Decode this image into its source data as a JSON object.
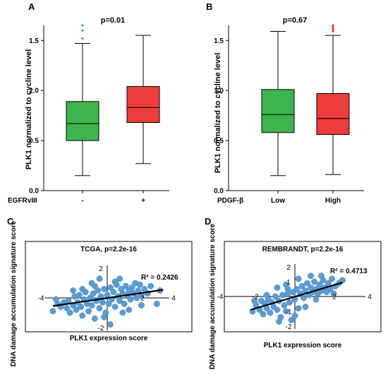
{
  "chart_data": [
    {
      "panel": "A",
      "type": "box",
      "title": "p=0.01",
      "ylabel": "PLK1 normalized  to cycline level",
      "group_label": "EGFRvIII",
      "ylim": [
        0,
        1.65
      ],
      "yticks": [
        "0.0",
        "0.5",
        "1.0",
        "1.5"
      ],
      "categories": [
        "-",
        "+"
      ],
      "boxes": [
        {
          "category": "-",
          "min": 0.15,
          "q1": 0.5,
          "median": 0.67,
          "q3": 0.89,
          "max": 1.47,
          "outliers": [
            1.52,
            1.6,
            1.65
          ],
          "color": "#3cb44b"
        },
        {
          "category": "+",
          "min": 0.27,
          "q1": 0.68,
          "median": 0.83,
          "q3": 1.04,
          "max": 1.55,
          "outliers": [],
          "color": "#ee3b3b"
        }
      ]
    },
    {
      "panel": "B",
      "type": "box",
      "title": "p=0.67",
      "ylabel": "PLK1 normalized  to cycline level",
      "group_label": "PDGF-β",
      "ylim": [
        0,
        1.65
      ],
      "yticks": [
        "0.0",
        "0.5",
        "1.0",
        "1.5"
      ],
      "categories": [
        "Low",
        "High"
      ],
      "boxes": [
        {
          "category": "Low",
          "min": 0.15,
          "q1": 0.58,
          "median": 0.76,
          "q3": 1.01,
          "max": 1.59,
          "outliers": [],
          "color": "#3cb44b"
        },
        {
          "category": "High",
          "min": 0.16,
          "q1": 0.56,
          "median": 0.72,
          "q3": 0.97,
          "max": 1.55,
          "outliers": [
            1.59,
            1.61,
            1.63,
            1.65
          ],
          "color": "#ee3b3b"
        }
      ]
    },
    {
      "panel": "C",
      "type": "scatter",
      "title": "TCGA, p=2.2e-16",
      "xlabel": "PLK1 expression score",
      "ylabel": "DNA damage accumulation signature score",
      "annotation": "R² = 0.2426",
      "xlim": [
        -4,
        4
      ],
      "ylim": [
        -2.2,
        2.2
      ],
      "xticks": [
        "-4",
        "2",
        "4"
      ],
      "yticks": [
        "2",
        "-2"
      ],
      "color": "#5b9bd5",
      "trend": {
        "x": [
          -3.5,
          3.6
        ],
        "y": [
          -0.55,
          0.55
        ]
      },
      "points": [
        [
          -3.5,
          -0.9
        ],
        [
          -3.2,
          -0.4
        ],
        [
          -3.0,
          -0.6
        ],
        [
          -2.8,
          -0.3
        ],
        [
          -2.6,
          -0.7
        ],
        [
          -2.5,
          -0.2
        ],
        [
          -2.4,
          -1.0
        ],
        [
          -2.2,
          -0.5
        ],
        [
          -2.1,
          0.1
        ],
        [
          -2.0,
          -0.8
        ],
        [
          -1.9,
          -0.3
        ],
        [
          -1.8,
          0.2
        ],
        [
          -1.7,
          -0.6
        ],
        [
          -1.6,
          -1.2
        ],
        [
          -1.5,
          -0.1
        ],
        [
          -1.4,
          0.4
        ],
        [
          -1.3,
          -0.4
        ],
        [
          -1.2,
          -0.9
        ],
        [
          -1.1,
          0.0
        ],
        [
          -1.0,
          -0.5
        ],
        [
          -0.9,
          0.3
        ],
        [
          -0.8,
          -1.4
        ],
        [
          -0.7,
          -0.2
        ],
        [
          -0.6,
          0.5
        ],
        [
          -0.5,
          -0.7
        ],
        [
          -0.4,
          0.1
        ],
        [
          -0.3,
          -0.3
        ],
        [
          -0.2,
          0.6
        ],
        [
          -0.1,
          -1.0
        ],
        [
          0.0,
          0.2
        ],
        [
          0.1,
          -0.4
        ],
        [
          0.2,
          0.7
        ],
        [
          0.3,
          -0.1
        ],
        [
          0.4,
          0.4
        ],
        [
          0.5,
          -0.6
        ],
        [
          0.6,
          0.9
        ],
        [
          0.7,
          0.1
        ],
        [
          0.8,
          -0.2
        ],
        [
          0.9,
          0.6
        ],
        [
          1.0,
          0.3
        ],
        [
          1.1,
          -0.4
        ],
        [
          1.2,
          0.8
        ],
        [
          1.3,
          0.2
        ],
        [
          1.4,
          0.5
        ],
        [
          1.5,
          -0.1
        ],
        [
          1.6,
          0.7
        ],
        [
          1.7,
          0.3
        ],
        [
          1.8,
          1.0
        ],
        [
          1.9,
          0.0
        ],
        [
          2.0,
          0.5
        ],
        [
          2.1,
          0.9
        ],
        [
          2.2,
          0.2
        ],
        [
          2.4,
          0.6
        ],
        [
          2.6,
          0.3
        ],
        [
          2.8,
          0.8
        ],
        [
          3.2,
          -0.4
        ],
        [
          3.4,
          0.5
        ],
        [
          -0.5,
          1.3
        ],
        [
          0.2,
          -1.8
        ],
        [
          -1.0,
          1.0
        ],
        [
          0.8,
          1.3
        ],
        [
          -2.2,
          0.5
        ],
        [
          1.4,
          -0.8
        ],
        [
          -0.2,
          -1.3
        ],
        [
          0.5,
          1.1
        ],
        [
          -1.6,
          0.6
        ],
        [
          1.0,
          -1.0
        ],
        [
          -0.8,
          0.8
        ],
        [
          2.2,
          -0.5
        ],
        [
          -3.3,
          -0.1
        ]
      ]
    },
    {
      "panel": "D",
      "type": "scatter",
      "title": "REMBRANDT, p=2.2e-16",
      "xlabel": "PLK1 expression score",
      "ylabel": "DNA damage accumulation signature score",
      "annotation": "R² = 0.4713",
      "xlim": [
        -4,
        4
      ],
      "ylim": [
        -2.2,
        2.2
      ],
      "xticks": [
        "-4",
        "-2",
        "2",
        "4"
      ],
      "yticks": [
        "2",
        "1",
        "-1",
        "-2"
      ],
      "color": "#5b9bd5",
      "trend": {
        "x": [
          -2.5,
          2.7
        ],
        "y": [
          -0.9,
          0.95
        ]
      },
      "points": [
        [
          -2.4,
          -1.0
        ],
        [
          -2.2,
          -0.6
        ],
        [
          -2.0,
          -0.9
        ],
        [
          -1.9,
          -0.3
        ],
        [
          -1.8,
          -1.2
        ],
        [
          -1.7,
          -0.5
        ],
        [
          -1.6,
          -0.8
        ],
        [
          -1.5,
          -0.2
        ],
        [
          -1.4,
          -1.1
        ],
        [
          -1.3,
          -0.4
        ],
        [
          -1.2,
          -0.7
        ],
        [
          -1.1,
          0.0
        ],
        [
          -1.0,
          -0.9
        ],
        [
          -0.9,
          -0.3
        ],
        [
          -0.8,
          -1.4
        ],
        [
          -0.7,
          0.1
        ],
        [
          -0.6,
          -0.6
        ],
        [
          -0.5,
          -1.0
        ],
        [
          -0.4,
          0.2
        ],
        [
          -0.3,
          -0.4
        ],
        [
          -0.2,
          -1.6
        ],
        [
          -0.1,
          0.3
        ],
        [
          0.0,
          -0.2
        ],
        [
          0.1,
          0.5
        ],
        [
          0.2,
          -0.8
        ],
        [
          0.3,
          0.2
        ],
        [
          0.4,
          0.7
        ],
        [
          0.5,
          -0.1
        ],
        [
          0.6,
          0.4
        ],
        [
          0.7,
          0.9
        ],
        [
          0.8,
          0.1
        ],
        [
          0.9,
          0.6
        ],
        [
          1.0,
          0.3
        ],
        [
          1.1,
          1.0
        ],
        [
          1.2,
          0.5
        ],
        [
          1.3,
          0.2
        ],
        [
          1.4,
          0.8
        ],
        [
          1.5,
          0.4
        ],
        [
          1.6,
          1.1
        ],
        [
          1.7,
          0.6
        ],
        [
          1.8,
          0.3
        ],
        [
          1.9,
          0.9
        ],
        [
          2.0,
          0.5
        ],
        [
          2.1,
          1.2
        ],
        [
          2.3,
          0.7
        ],
        [
          2.5,
          0.9
        ],
        [
          2.7,
          1.1
        ],
        [
          -1.0,
          0.6
        ],
        [
          -0.5,
          0.8
        ],
        [
          0.2,
          1.2
        ],
        [
          0.6,
          -0.7
        ],
        [
          -2.3,
          -0.3
        ],
        [
          1.2,
          -0.2
        ],
        [
          -0.9,
          -1.7
        ],
        [
          0.9,
          1.4
        ],
        [
          -1.6,
          0.1
        ],
        [
          0.0,
          -1.3
        ],
        [
          1.5,
          1.4
        ],
        [
          -0.4,
          0.5
        ],
        [
          2.2,
          0.2
        ]
      ]
    }
  ],
  "panel_letters": [
    "A",
    "B",
    "C",
    "D"
  ]
}
